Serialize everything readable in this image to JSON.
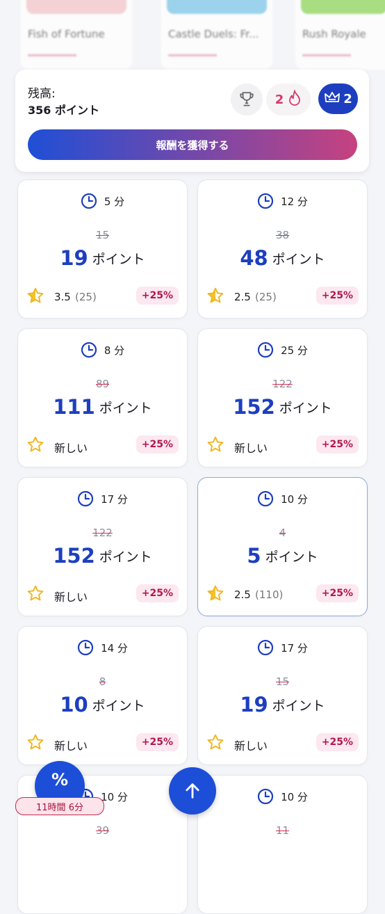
{
  "games": [
    {
      "title": "Fish of Fortune"
    },
    {
      "title": "Castle Duels: Fr..."
    },
    {
      "title": "Rush Royale"
    }
  ],
  "balance": {
    "label": "残高:",
    "amount": "356 ポイント",
    "streak": "2",
    "level": "2",
    "button": "報酬を獲得する"
  },
  "offers": [
    {
      "time": "5 分",
      "old_points": "15",
      "points": "19",
      "unit": "ポイント",
      "rating": "3.5",
      "reviews": "(25)",
      "bonus": "+25%"
    },
    {
      "time": "12 分",
      "old_points": "38",
      "points": "48",
      "unit": "ポイント",
      "rating": "2.5",
      "reviews": "(25)",
      "bonus": "+25%"
    },
    {
      "time": "8 分",
      "old_points": "89",
      "points": "111",
      "unit": "ポイント",
      "rating_label": "新しい",
      "bonus": "+25%"
    },
    {
      "time": "25 分",
      "old_points": "122",
      "points": "152",
      "unit": "ポイント",
      "rating_label": "新しい",
      "bonus": "+25%"
    },
    {
      "time": "17 分",
      "old_points": "122",
      "points": "152",
      "unit": "ポイント",
      "rating_label": "新しい",
      "bonus": "+25%"
    },
    {
      "time": "10 分",
      "old_points": "4",
      "points": "5",
      "unit": "ポイント",
      "rating": "2.5",
      "reviews": "(110)",
      "bonus": "+25%",
      "selected": true
    },
    {
      "time": "14 分",
      "old_points": "8",
      "points": "10",
      "unit": "ポイント",
      "rating_label": "新しい",
      "bonus": "+25%"
    },
    {
      "time": "17 分",
      "old_points": "15",
      "points": "19",
      "unit": "ポイント",
      "rating_label": "新しい",
      "bonus": "+25%"
    },
    {
      "time": "10 分",
      "old_points": "39"
    },
    {
      "time": "10 分",
      "old_points": "11"
    }
  ],
  "promo": {
    "icon": "%",
    "timer": "11時間 6分"
  }
}
